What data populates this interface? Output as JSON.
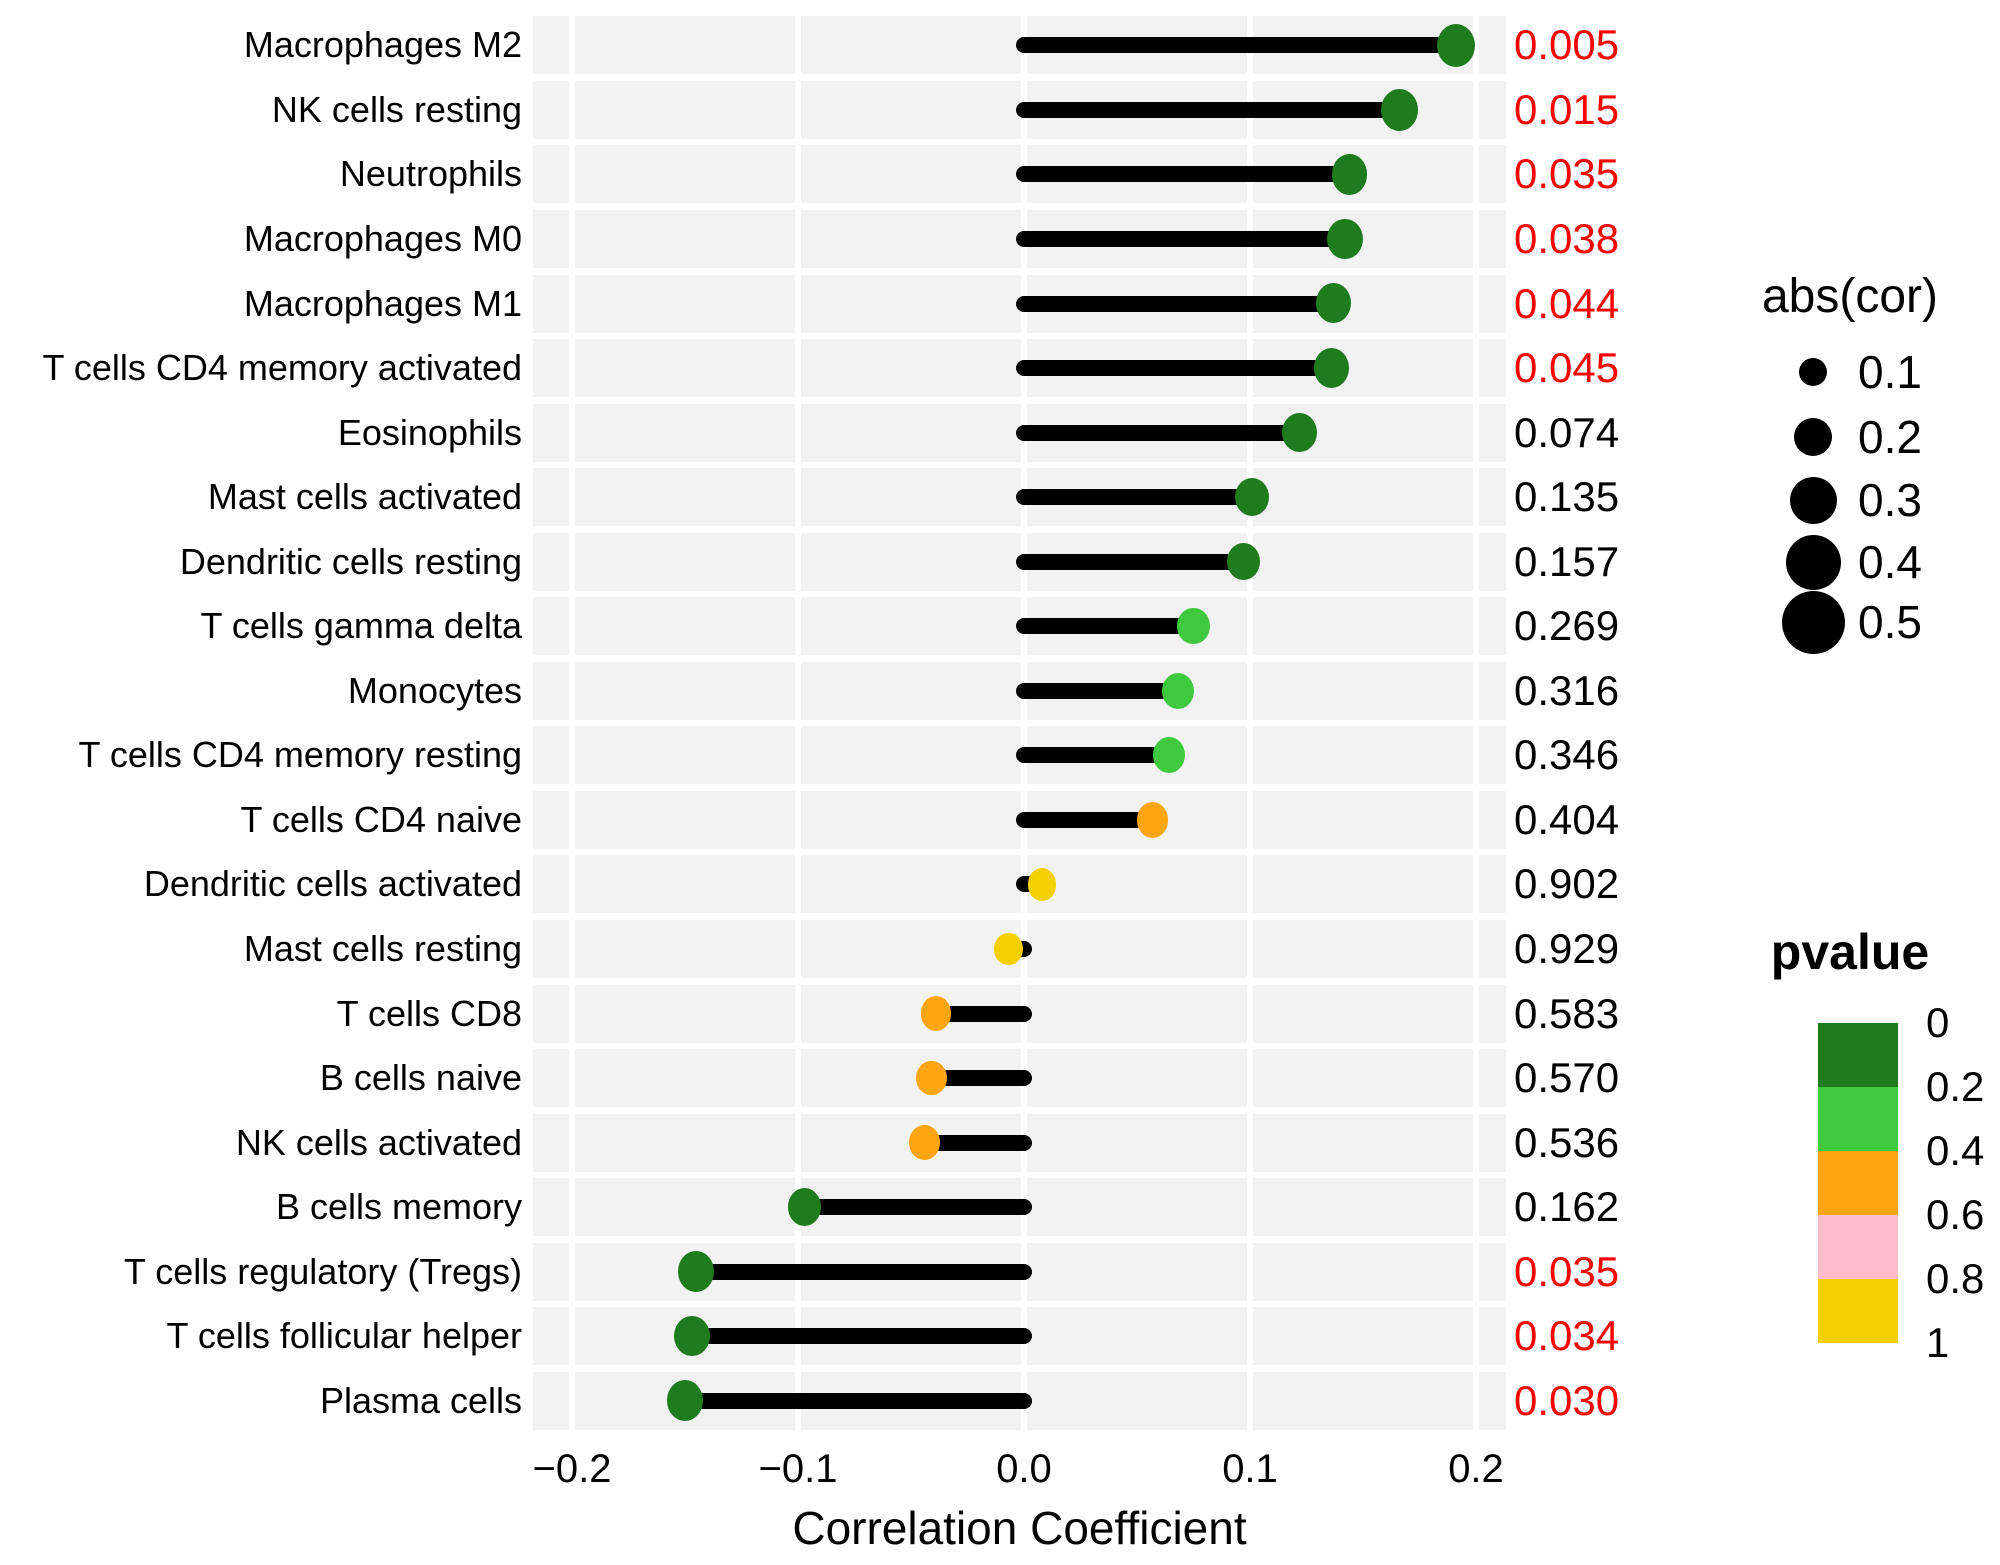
{
  "chart_data": {
    "type": "lollipop",
    "orientation": "horizontal",
    "title": "",
    "xlabel": "Correlation Coefficient",
    "x_ticks": [
      "−0.2",
      "−0.1",
      "0.0",
      "0.1",
      "0.2"
    ],
    "x_tick_values": [
      -0.2,
      -0.1,
      0.0,
      0.1,
      0.2
    ],
    "xlim": [
      -0.218,
      0.214
    ],
    "grid": "major-vertical-white-on-gray-bands",
    "rows": [
      {
        "label": "Macrophages M2",
        "cor": 0.191,
        "pvalue": "0.005",
        "significant": true,
        "color": "#1e7b1e"
      },
      {
        "label": "NK cells resting",
        "cor": 0.166,
        "pvalue": "0.015",
        "significant": true,
        "color": "#1e7b1e"
      },
      {
        "label": "Neutrophils",
        "cor": 0.144,
        "pvalue": "0.035",
        "significant": true,
        "color": "#1e7b1e"
      },
      {
        "label": "Macrophages M0",
        "cor": 0.142,
        "pvalue": "0.038",
        "significant": true,
        "color": "#1e7b1e"
      },
      {
        "label": "Macrophages M1",
        "cor": 0.137,
        "pvalue": "0.044",
        "significant": true,
        "color": "#1e7b1e"
      },
      {
        "label": "T cells CD4 memory activated",
        "cor": 0.136,
        "pvalue": "0.045",
        "significant": true,
        "color": "#1e7b1e"
      },
      {
        "label": "Eosinophils",
        "cor": 0.122,
        "pvalue": "0.074",
        "significant": false,
        "color": "#1e7b1e"
      },
      {
        "label": "Mast cells activated",
        "cor": 0.101,
        "pvalue": "0.135",
        "significant": false,
        "color": "#1e7b1e"
      },
      {
        "label": "Dendritic cells resting",
        "cor": 0.097,
        "pvalue": "0.157",
        "significant": false,
        "color": "#1e7b1e"
      },
      {
        "label": "T cells gamma delta",
        "cor": 0.075,
        "pvalue": "0.269",
        "significant": false,
        "color": "#3ec93e"
      },
      {
        "label": "Monocytes",
        "cor": 0.068,
        "pvalue": "0.316",
        "significant": false,
        "color": "#3ec93e"
      },
      {
        "label": "T cells CD4 memory resting",
        "cor": 0.064,
        "pvalue": "0.346",
        "significant": false,
        "color": "#3ec93e"
      },
      {
        "label": "T cells CD4 naive",
        "cor": 0.057,
        "pvalue": "0.404",
        "significant": false,
        "color": "#ffa511"
      },
      {
        "label": "Dendritic cells activated",
        "cor": 0.008,
        "pvalue": "0.902",
        "significant": false,
        "color": "#f5d000"
      },
      {
        "label": "Mast cells resting",
        "cor": -0.007,
        "pvalue": "0.929",
        "significant": false,
        "color": "#f5d000"
      },
      {
        "label": "T cells CD8",
        "cor": -0.039,
        "pvalue": "0.583",
        "significant": false,
        "color": "#ffa511"
      },
      {
        "label": "B cells naive",
        "cor": -0.041,
        "pvalue": "0.570",
        "significant": false,
        "color": "#ffa511"
      },
      {
        "label": "NK cells activated",
        "cor": -0.044,
        "pvalue": "0.536",
        "significant": false,
        "color": "#ffa511"
      },
      {
        "label": "B cells memory",
        "cor": -0.097,
        "pvalue": "0.162",
        "significant": false,
        "color": "#1e7b1e"
      },
      {
        "label": "T cells regulatory (Tregs)",
        "cor": -0.145,
        "pvalue": "0.035",
        "significant": true,
        "color": "#1e7b1e"
      },
      {
        "label": "T cells follicular helper",
        "cor": -0.147,
        "pvalue": "0.034",
        "significant": true,
        "color": "#1e7b1e"
      },
      {
        "label": "Plasma cells",
        "cor": -0.15,
        "pvalue": "0.030",
        "significant": true,
        "color": "#1e7b1e"
      }
    ],
    "legends": {
      "size": {
        "title": "abs(cor)",
        "entries": [
          {
            "label": "0.1",
            "diameter": 28
          },
          {
            "label": "0.2",
            "diameter": 38
          },
          {
            "label": "0.3",
            "diameter": 47
          },
          {
            "label": "0.4",
            "diameter": 55
          },
          {
            "label": "0.5",
            "diameter": 63
          }
        ]
      },
      "color": {
        "title": "pvalue",
        "ticks": [
          "0",
          "0.2",
          "0.4",
          "0.6",
          "0.8",
          "1"
        ],
        "segments": [
          "#1e7b1e",
          "#3ec93e",
          "#ffa511",
          "#ffbccb",
          "#f5d000"
        ]
      }
    },
    "colors": {
      "significant_text": "#fa0000",
      "normal_text": "#000000",
      "band_background": "#f2f2f2",
      "stick": "#000000"
    }
  }
}
